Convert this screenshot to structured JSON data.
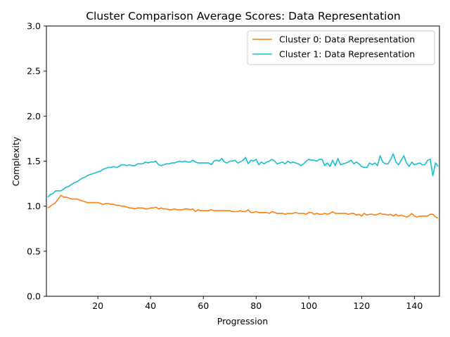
{
  "chart_data": {
    "type": "line",
    "title": "Cluster Comparison Average Scores: Data Representation",
    "xlabel": "Progression",
    "ylabel": "Complexity",
    "xlim": [
      0.5,
      149.5
    ],
    "ylim": [
      0,
      3.0
    ],
    "xticks": [
      20,
      40,
      60,
      80,
      100,
      120,
      140
    ],
    "yticks": [
      0.0,
      0.5,
      1.0,
      1.5,
      2.0,
      2.5,
      3.0
    ],
    "ytick_labels": [
      "0.0",
      "0.5",
      "1.0",
      "1.5",
      "2.0",
      "2.5",
      "3.0"
    ],
    "grid": false,
    "legend_position": "top-right",
    "x": [
      1,
      2,
      3,
      4,
      5,
      6,
      7,
      8,
      9,
      10,
      11,
      12,
      13,
      14,
      15,
      16,
      17,
      18,
      19,
      20,
      21,
      22,
      23,
      24,
      25,
      26,
      27,
      28,
      29,
      30,
      31,
      32,
      33,
      34,
      35,
      36,
      37,
      38,
      39,
      40,
      41,
      42,
      43,
      44,
      45,
      46,
      47,
      48,
      49,
      50,
      51,
      52,
      53,
      54,
      55,
      56,
      57,
      58,
      59,
      60,
      61,
      62,
      63,
      64,
      65,
      66,
      67,
      68,
      69,
      70,
      71,
      72,
      73,
      74,
      75,
      76,
      77,
      78,
      79,
      80,
      81,
      82,
      83,
      84,
      85,
      86,
      87,
      88,
      89,
      90,
      91,
      92,
      93,
      94,
      95,
      96,
      97,
      98,
      99,
      100,
      101,
      102,
      103,
      104,
      105,
      106,
      107,
      108,
      109,
      110,
      111,
      112,
      113,
      114,
      115,
      116,
      117,
      118,
      119,
      120,
      121,
      122,
      123,
      124,
      125,
      126,
      127,
      128,
      129,
      130,
      131,
      132,
      133,
      134,
      135,
      136,
      137,
      138,
      139,
      140,
      141,
      142,
      143,
      144,
      145,
      146,
      147,
      148,
      149
    ],
    "series": [
      {
        "name": "Cluster 0: Data Representation",
        "color": "#ff7f0e",
        "values": [
          0.98,
          1.0,
          1.02,
          1.04,
          1.08,
          1.12,
          1.1,
          1.1,
          1.09,
          1.08,
          1.08,
          1.08,
          1.07,
          1.06,
          1.05,
          1.04,
          1.04,
          1.04,
          1.04,
          1.04,
          1.03,
          1.02,
          1.03,
          1.03,
          1.02,
          1.02,
          1.01,
          1.01,
          1.0,
          1.0,
          0.99,
          0.98,
          0.98,
          0.97,
          0.98,
          0.98,
          0.98,
          0.97,
          0.97,
          0.98,
          0.98,
          0.99,
          0.97,
          0.98,
          0.97,
          0.97,
          0.96,
          0.96,
          0.97,
          0.96,
          0.96,
          0.96,
          0.97,
          0.97,
          0.96,
          0.97,
          0.94,
          0.96,
          0.95,
          0.95,
          0.95,
          0.95,
          0.96,
          0.95,
          0.95,
          0.95,
          0.95,
          0.95,
          0.95,
          0.95,
          0.94,
          0.94,
          0.94,
          0.95,
          0.94,
          0.94,
          0.96,
          0.93,
          0.93,
          0.94,
          0.93,
          0.93,
          0.93,
          0.93,
          0.92,
          0.94,
          0.93,
          0.92,
          0.92,
          0.92,
          0.91,
          0.92,
          0.92,
          0.92,
          0.93,
          0.92,
          0.92,
          0.92,
          0.91,
          0.93,
          0.93,
          0.91,
          0.92,
          0.91,
          0.91,
          0.92,
          0.91,
          0.92,
          0.94,
          0.92,
          0.92,
          0.92,
          0.92,
          0.92,
          0.91,
          0.92,
          0.92,
          0.9,
          0.91,
          0.89,
          0.92,
          0.9,
          0.91,
          0.91,
          0.9,
          0.91,
          0.92,
          0.91,
          0.91,
          0.9,
          0.91,
          0.89,
          0.91,
          0.89,
          0.9,
          0.89,
          0.88,
          0.89,
          0.92,
          0.89,
          0.88,
          0.89,
          0.89,
          0.89,
          0.89,
          0.91,
          0.91,
          0.88,
          0.87
        ]
      },
      {
        "name": "Cluster 1: Data Representation",
        "color": "#17becf",
        "values": [
          1.1,
          1.13,
          1.14,
          1.17,
          1.17,
          1.17,
          1.19,
          1.21,
          1.22,
          1.24,
          1.26,
          1.27,
          1.29,
          1.31,
          1.32,
          1.34,
          1.35,
          1.36,
          1.37,
          1.38,
          1.39,
          1.41,
          1.42,
          1.43,
          1.43,
          1.44,
          1.43,
          1.44,
          1.46,
          1.46,
          1.45,
          1.46,
          1.45,
          1.45,
          1.47,
          1.47,
          1.47,
          1.49,
          1.48,
          1.49,
          1.49,
          1.5,
          1.46,
          1.45,
          1.46,
          1.47,
          1.47,
          1.48,
          1.48,
          1.49,
          1.5,
          1.49,
          1.5,
          1.49,
          1.49,
          1.51,
          1.49,
          1.48,
          1.48,
          1.48,
          1.48,
          1.48,
          1.46,
          1.5,
          1.51,
          1.5,
          1.53,
          1.49,
          1.48,
          1.5,
          1.5,
          1.51,
          1.48,
          1.49,
          1.51,
          1.54,
          1.47,
          1.51,
          1.5,
          1.52,
          1.46,
          1.49,
          1.47,
          1.49,
          1.5,
          1.52,
          1.5,
          1.47,
          1.48,
          1.49,
          1.47,
          1.5,
          1.48,
          1.49,
          1.48,
          1.47,
          1.45,
          1.47,
          1.5,
          1.52,
          1.51,
          1.51,
          1.5,
          1.52,
          1.52,
          1.45,
          1.48,
          1.44,
          1.51,
          1.45,
          1.53,
          1.46,
          1.47,
          1.48,
          1.49,
          1.51,
          1.47,
          1.49,
          1.47,
          1.44,
          1.43,
          1.43,
          1.48,
          1.46,
          1.48,
          1.45,
          1.56,
          1.49,
          1.47,
          1.47,
          1.52,
          1.58,
          1.49,
          1.46,
          1.51,
          1.56,
          1.48,
          1.44,
          1.49,
          1.46,
          1.47,
          1.48,
          1.46,
          1.46,
          1.51,
          1.52,
          1.34,
          1.48,
          1.44
        ]
      }
    ]
  }
}
